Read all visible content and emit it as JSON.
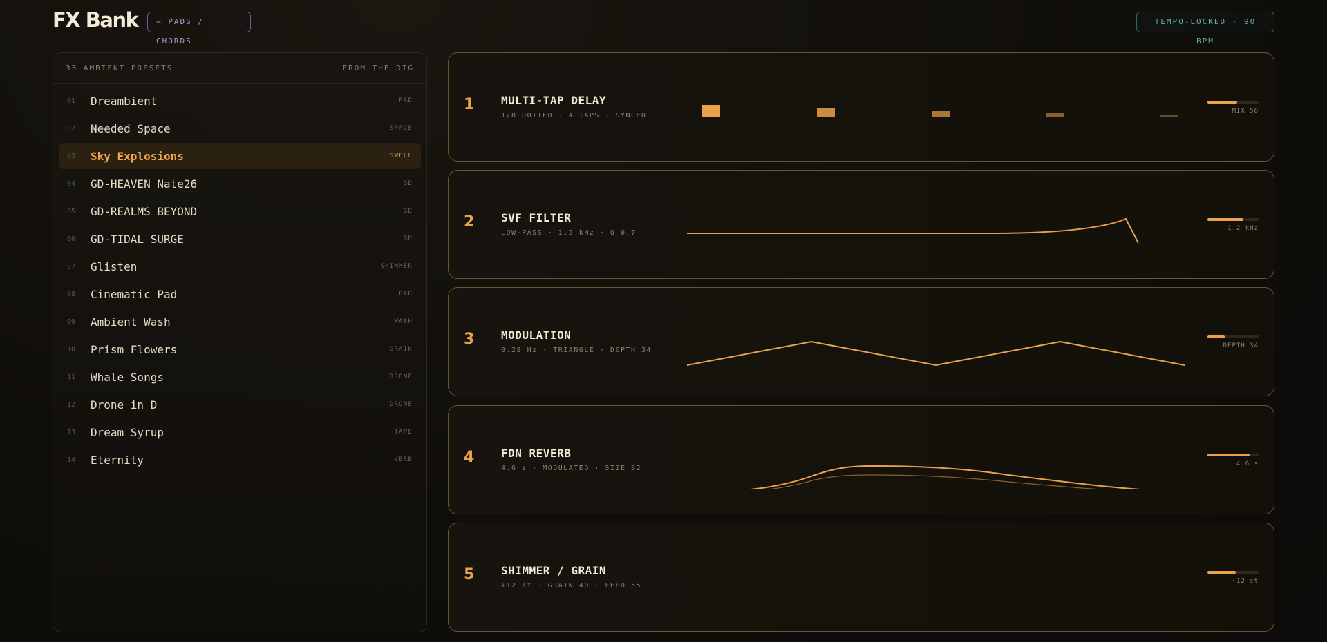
{
  "header": {
    "brand": "FX Bank",
    "mode_pill": "→ PADS / CHORDS",
    "tempo_pill": "TEMPO-LOCKED · 90 BPM"
  },
  "presets": {
    "count_label": "33 AMBIENT PRESETS",
    "source_label": "FROM THE RIG",
    "items": [
      {
        "num": "01",
        "name": "Dreambient",
        "tag": "PAD",
        "active": false
      },
      {
        "num": "02",
        "name": "Needed Space",
        "tag": "SPACE",
        "active": false
      },
      {
        "num": "03",
        "name": "Sky Explosions",
        "tag": "SWELL",
        "active": true
      },
      {
        "num": "04",
        "name": "GD-HEAVEN Nate26",
        "tag": "GD",
        "active": false
      },
      {
        "num": "05",
        "name": "GD-REALMS BEYOND",
        "tag": "GD",
        "active": false
      },
      {
        "num": "06",
        "name": "GD-TIDAL SURGE",
        "tag": "GD",
        "active": false
      },
      {
        "num": "07",
        "name": "Glisten",
        "tag": "SHIMMER",
        "active": false
      },
      {
        "num": "08",
        "name": "Cinematic Pad",
        "tag": "PAD",
        "active": false
      },
      {
        "num": "09",
        "name": "Ambient Wash",
        "tag": "WASH",
        "active": false
      },
      {
        "num": "10",
        "name": "Prism Flowers",
        "tag": "GRAIN",
        "active": false
      },
      {
        "num": "11",
        "name": "Whale Songs",
        "tag": "DRONE",
        "active": false
      },
      {
        "num": "12",
        "name": "Drone in D",
        "tag": "DRONE",
        "active": false
      },
      {
        "num": "13",
        "name": "Dream Syrup",
        "tag": "TAPE",
        "active": false
      },
      {
        "num": "14",
        "name": "Eternity",
        "tag": "VERB",
        "active": false
      }
    ]
  },
  "fx_chain": [
    {
      "index": "1",
      "title": "MULTI-TAP DELAY",
      "subtitle": "1/8 DOTTED · 4 TAPS · SYNCED",
      "meter_label": "MIX 58",
      "meter_value": 0.58,
      "viz": "taps"
    },
    {
      "index": "2",
      "title": "SVF FILTER",
      "subtitle": "LOW-PASS · 1.2 kHz · Q 0.7",
      "meter_label": "1.2 kHz",
      "meter_value": 0.7,
      "viz": "filter"
    },
    {
      "index": "3",
      "title": "MODULATION",
      "subtitle": "0.28 Hz · TRIANGLE · DEPTH 34",
      "meter_label": "DEPTH 34",
      "meter_value": 0.34,
      "viz": "lfo"
    },
    {
      "index": "4",
      "title": "FDN REVERB",
      "subtitle": "4.6 s · MODULATED · SIZE 82",
      "meter_label": "4.6 s",
      "meter_value": 0.82,
      "viz": "reverb"
    },
    {
      "index": "5",
      "title": "SHIMMER / GRAIN",
      "subtitle": "+12 st · GRAIN 40 · FEED 55",
      "meter_label": "+12 st",
      "meter_value": 0.55,
      "viz": "none"
    }
  ],
  "colors": {
    "accent": "#eba24a",
    "pads_pill": "#a99bd4",
    "tempo_pill": "#5fb3a1"
  }
}
